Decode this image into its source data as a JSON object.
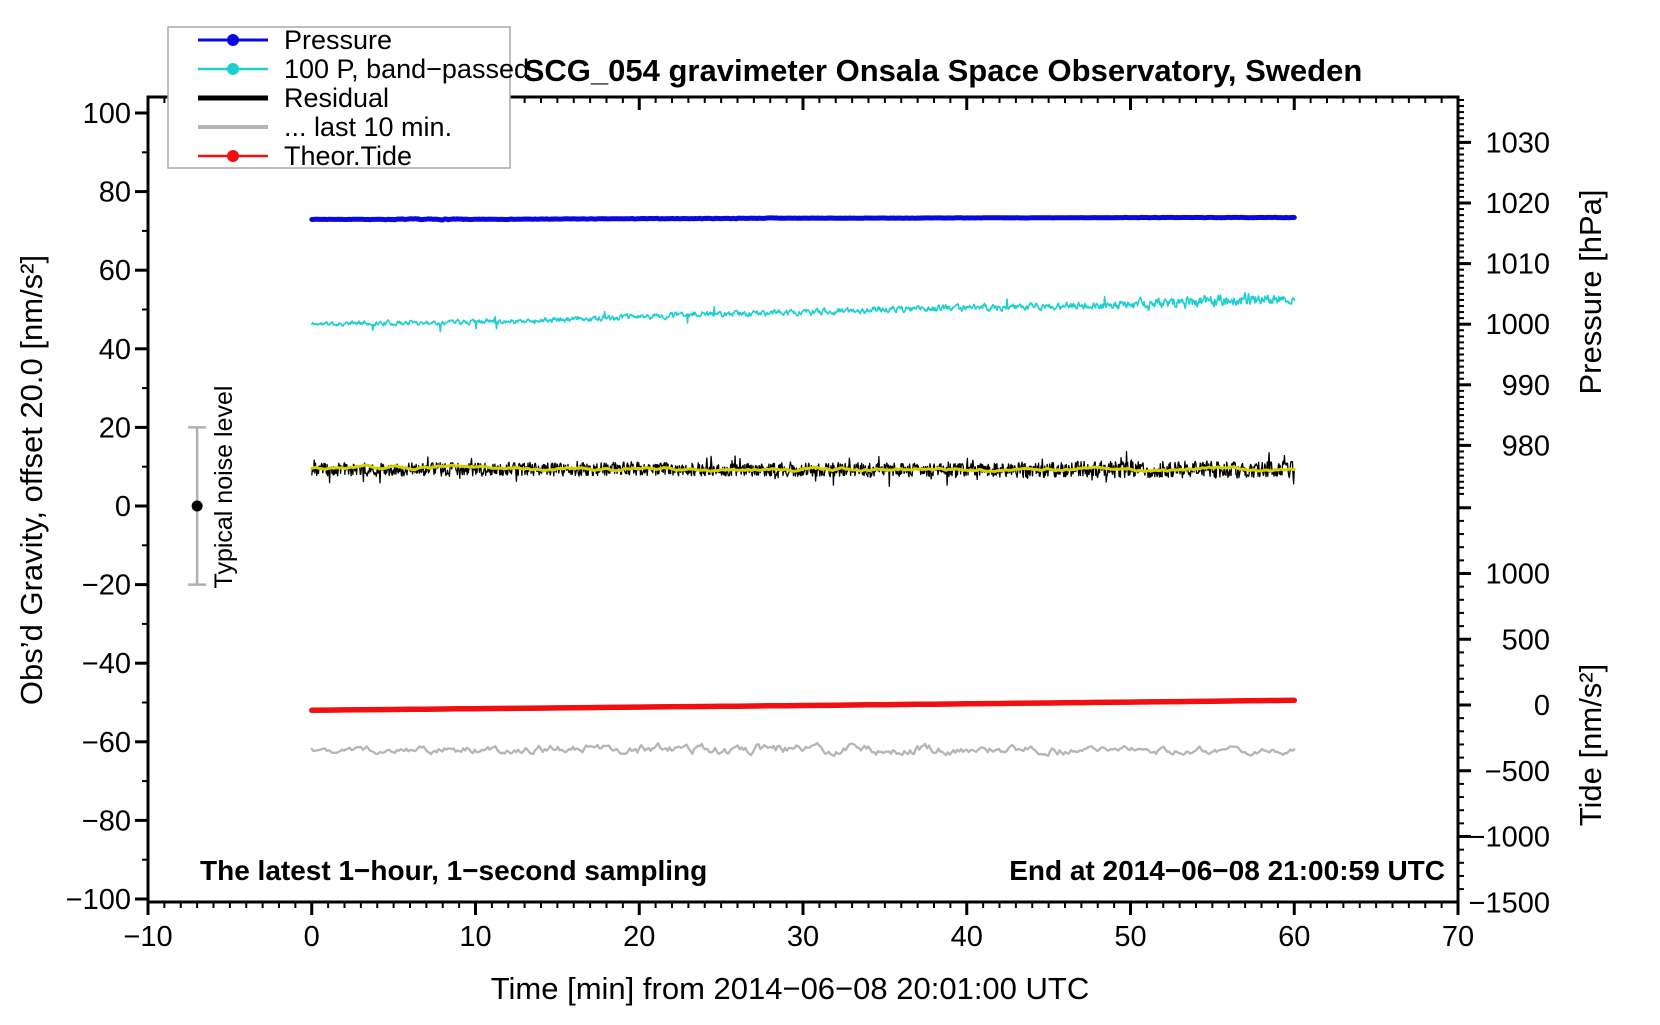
{
  "title": "SCG_054 gravimeter Onsala Space Observatory, Sweden",
  "annotations": {
    "bottom_left": "The latest 1−hour, 1−second sampling",
    "bottom_right": "End at 2014−06−08 21:00:59 UTC",
    "noise_label": "Typical noise level"
  },
  "axes": {
    "x": {
      "label": "Time [min] from 2014−06−08 20:01:00 UTC"
    },
    "left": {
      "label": "Obs’d Gravity, offset 20.0 [nm/s²]"
    },
    "pressure": {
      "label": "Pressure [hPa]"
    },
    "tide": {
      "label": "Tide [nm/s²]"
    }
  },
  "legend": {
    "items": [
      {
        "label": "Pressure",
        "color": "#0a0ae0",
        "marker": true,
        "lw": 3
      },
      {
        "label": "100 P, band−passed",
        "color": "#1ecfcf",
        "marker": true,
        "lw": 2.5
      },
      {
        "label": "Residual",
        "color": "#000000",
        "marker": false,
        "lw": 5
      },
      {
        "label": "... last 10 min.",
        "color": "#b5b5b5",
        "marker": false,
        "lw": 4
      },
      {
        "label": "Theor.Tide",
        "color": "#f01010",
        "marker": true,
        "lw": 2.5
      }
    ]
  },
  "chart_data": {
    "type": "line",
    "x_range": [
      -10,
      70
    ],
    "x_major_tick_step": 10,
    "x_minor_tick_step": 1,
    "x_tick_labels": [
      "−10",
      "0",
      "10",
      "20",
      "30",
      "40",
      "50",
      "60",
      "70"
    ],
    "x_tick_values": [
      -10,
      0,
      10,
      20,
      30,
      40,
      50,
      60,
      70
    ],
    "left_axis": {
      "tick_values": [
        100,
        80,
        60,
        40,
        20,
        0,
        -20,
        -40,
        -60,
        -80,
        -100
      ],
      "tick_labels": [
        "100",
        "80",
        "60",
        "40",
        "20",
        "0",
        "−20",
        "−40",
        "−60",
        "−80",
        "−100"
      ],
      "minor_step": 10,
      "range": [
        -101,
        104
      ]
    },
    "pressure_axis": {
      "tick_values": [
        1030,
        1020,
        1010,
        1000,
        990,
        980
      ],
      "tick_labels": [
        "1030",
        "1020",
        "1010",
        "1000",
        "990",
        "980"
      ],
      "minor_step": 1,
      "range": [
        972,
        1037
      ]
    },
    "tide_axis": {
      "tick_values": [
        1000,
        500,
        0,
        -500,
        -1000,
        -1500
      ],
      "tick_labels": [
        "1000",
        "500",
        "0",
        "−500",
        "−1000",
        "−1500"
      ],
      "minor_step": 100,
      "range": [
        -1500,
        1550
      ]
    },
    "noise_bar": {
      "x_min": -7,
      "center_value": 0,
      "half_range": 20
    },
    "series": [
      {
        "id": "band_passed",
        "label": "100 P, band−passed",
        "axis": "left",
        "color": "#1ecfcf",
        "width": 1.6,
        "anchors": [
          [
            0,
            46.3
          ],
          [
            5,
            46.6
          ],
          [
            10,
            46.9
          ],
          [
            15,
            47.3
          ],
          [
            20,
            48.2
          ],
          [
            25,
            48.8
          ],
          [
            30,
            49.3
          ],
          [
            35,
            50.0
          ],
          [
            40,
            50.5
          ],
          [
            45,
            50.8
          ],
          [
            50,
            51.2
          ],
          [
            55,
            52.2
          ],
          [
            58,
            52.8
          ],
          [
            60,
            52.5
          ]
        ],
        "noise": {
          "seed": 11,
          "points": 1400,
          "amp": 1.15,
          "smooth": 0.55,
          "envelope": [
            [
              0,
              0.8
            ],
            [
              20,
              0.95
            ],
            [
              35,
              1.05
            ],
            [
              45,
              1.2
            ],
            [
              50,
              1.6
            ],
            [
              53,
              2.1
            ],
            [
              55,
              1.9
            ],
            [
              57,
              2.3
            ],
            [
              60,
              1.4
            ]
          ],
          "spike": {
            "prob": 0.006,
            "amp": 5.5
          }
        }
      },
      {
        "id": "pressure",
        "label": "Pressure",
        "axis": "pressure",
        "color": "#0a0ae0",
        "width": 5,
        "anchors": [
          [
            0,
            1017.3
          ],
          [
            5,
            1017.3
          ],
          [
            10,
            1017.3
          ],
          [
            15,
            1017.35
          ],
          [
            20,
            1017.4
          ],
          [
            25,
            1017.45
          ],
          [
            28,
            1017.5
          ],
          [
            35,
            1017.5
          ],
          [
            40,
            1017.55
          ],
          [
            45,
            1017.55
          ],
          [
            50,
            1017.6
          ],
          [
            55,
            1017.6
          ],
          [
            60,
            1017.6
          ]
        ],
        "noise": {
          "seed": 7,
          "points": 700,
          "amp": 0.06,
          "smooth": 0.45,
          "envelope": [
            [
              0,
              0.6
            ],
            [
              4,
              1.0
            ],
            [
              5,
              2.4
            ],
            [
              9,
              2.4
            ],
            [
              10,
              1.0
            ],
            [
              28,
              1.4
            ],
            [
              30,
              0.8
            ],
            [
              60,
              0.6
            ]
          ]
        }
      },
      {
        "id": "residual",
        "label": "Residual",
        "axis": "left",
        "color": "#000000",
        "width": 1.3,
        "anchors": [
          [
            0,
            9.3
          ],
          [
            20,
            9.4
          ],
          [
            40,
            9.2
          ],
          [
            60,
            9.3
          ]
        ],
        "noise": {
          "seed": 23,
          "points": 1600,
          "amp": 3.4,
          "smooth": 0.08,
          "envelope": [
            [
              0,
              1
            ],
            [
              40,
              1
            ],
            [
              48,
              1.25
            ],
            [
              55,
              1.3
            ],
            [
              60,
              1.15
            ]
          ],
          "spike": {
            "prob": 0.05,
            "amp": 6
          }
        }
      },
      {
        "id": "residual_smooth",
        "label": "Residual (smoothed)",
        "axis": "left",
        "color": "#d6cf00",
        "width": 3,
        "anchors": [
          [
            0,
            9.5
          ],
          [
            20,
            9.6
          ],
          [
            40,
            9.4
          ],
          [
            60,
            9.5
          ]
        ],
        "noise": {
          "seed": 31,
          "points": 450,
          "amp": 0.5,
          "smooth": 0.9
        }
      },
      {
        "id": "last_10_min",
        "label": "... last 10 min.",
        "axis": "left",
        "color": "#b5b5b5",
        "width": 2.3,
        "anchors": [
          [
            0,
            -62
          ],
          [
            30,
            -61.8
          ],
          [
            60,
            -62.2
          ]
        ],
        "noise": {
          "seed": 47,
          "points": 520,
          "amp": 1.5,
          "smooth": 0.72,
          "envelope": [
            [
              0,
              0.7
            ],
            [
              12,
              1.0
            ],
            [
              25,
              1.3
            ],
            [
              35,
              1.2
            ],
            [
              45,
              1.0
            ],
            [
              60,
              0.8
            ]
          ]
        }
      },
      {
        "id": "theor_tide",
        "label": "Theor.Tide",
        "axis": "tide",
        "color": "#f01010",
        "width": 5.5,
        "anchors": [
          [
            0,
            -40
          ],
          [
            10,
            -28
          ],
          [
            20,
            -16
          ],
          [
            30,
            -4
          ],
          [
            40,
            9
          ],
          [
            50,
            22
          ],
          [
            60,
            36
          ]
        ]
      }
    ]
  }
}
